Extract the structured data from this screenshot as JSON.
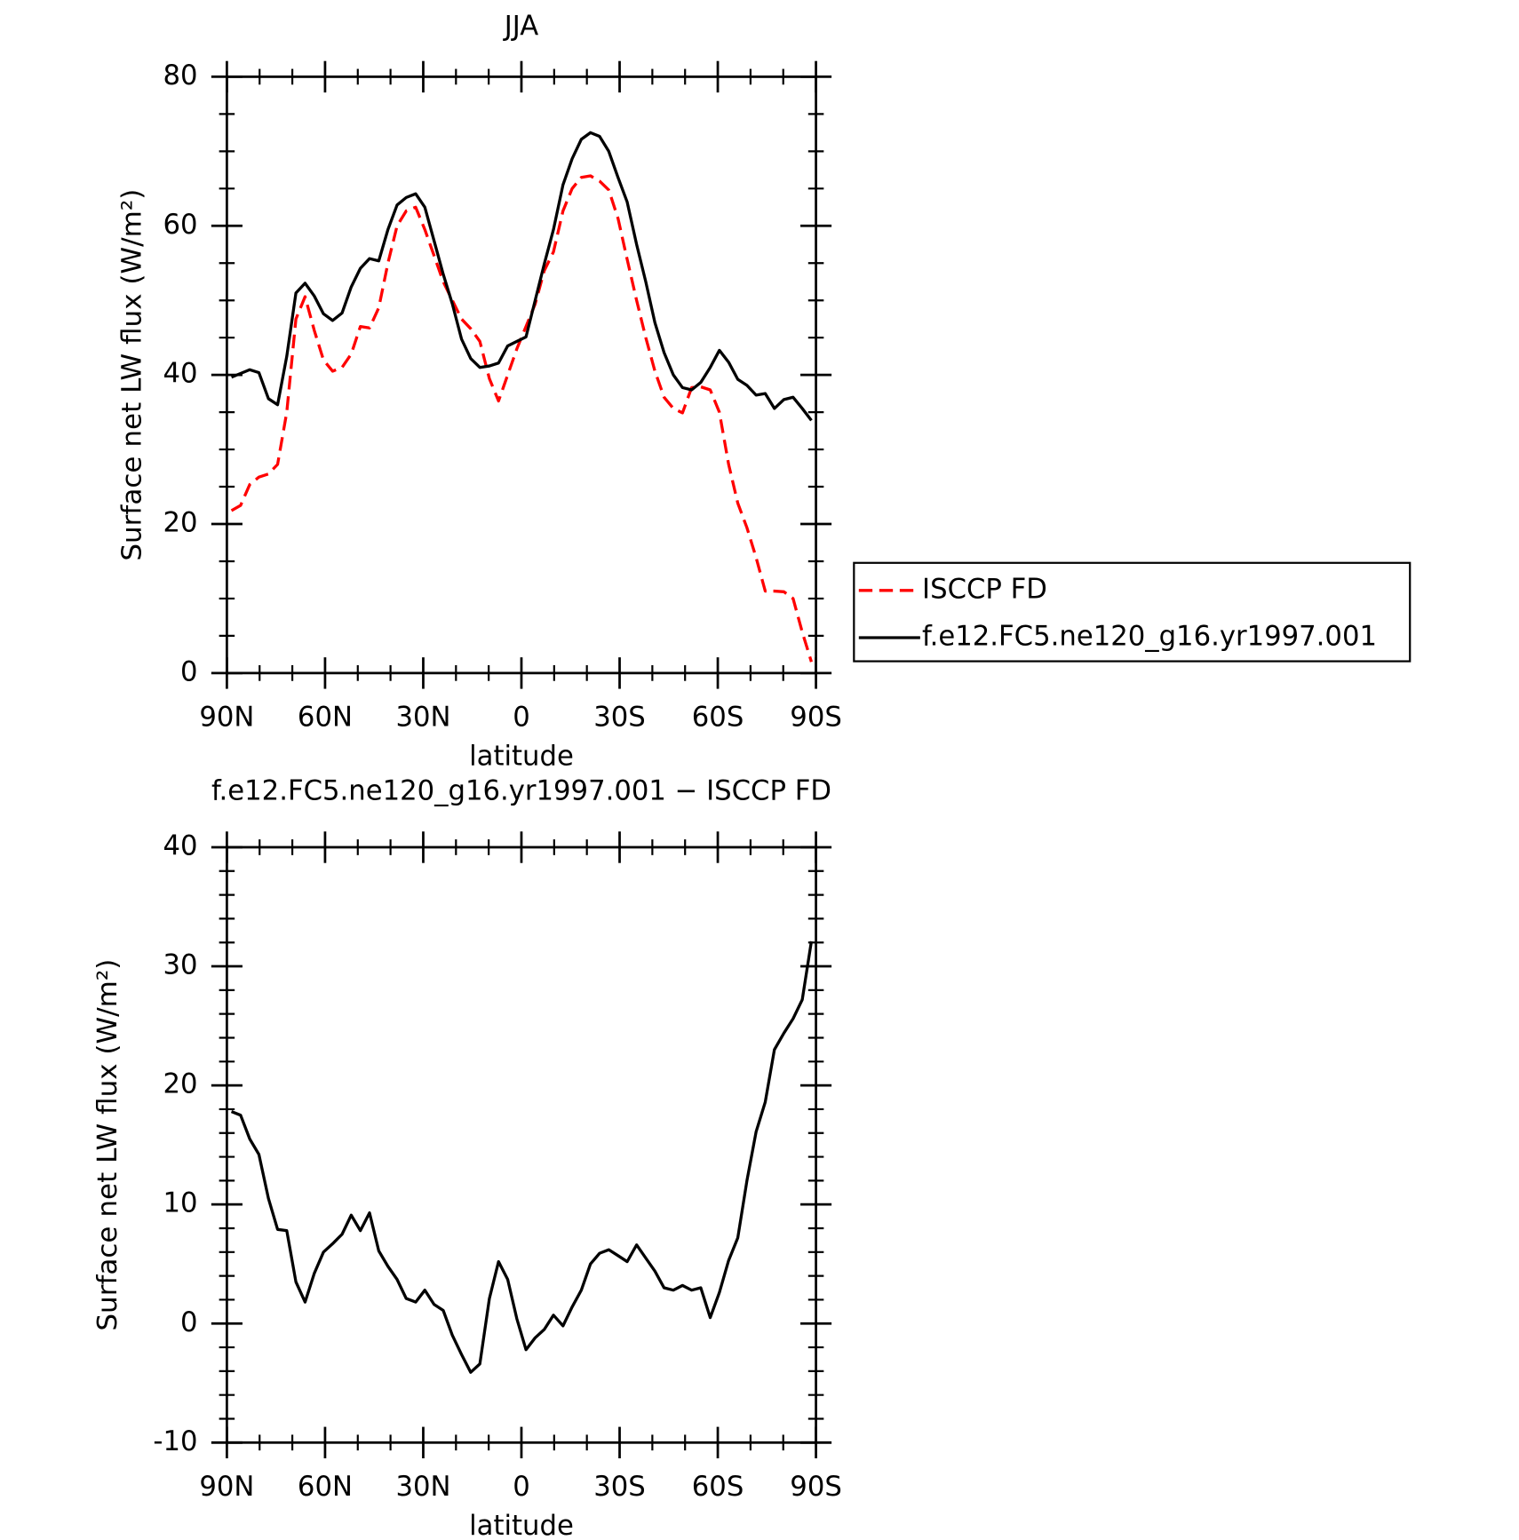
{
  "chart_data": [
    {
      "type": "line",
      "title": "JJA",
      "xlabel": "latitude",
      "ylabel": "Surface net LW flux (W/m²)",
      "xlim": [
        90,
        -90
      ],
      "xticks": [
        {
          "value": 90,
          "label": "90N"
        },
        {
          "value": 60,
          "label": "60N"
        },
        {
          "value": 30,
          "label": "30N"
        },
        0,
        {
          "value": -30,
          "label": "30S"
        },
        {
          "value": -60,
          "label": "60S"
        },
        {
          "value": -90,
          "label": "90S"
        }
      ],
      "xminorticks": [
        80,
        70,
        50,
        40,
        20,
        10,
        -10,
        -20,
        -40,
        -50,
        -70,
        -80
      ],
      "ylim": [
        0,
        80
      ],
      "yticks": [
        0,
        20,
        40,
        60,
        80
      ],
      "yminorticks": [
        5,
        10,
        15,
        25,
        30,
        35,
        45,
        50,
        55,
        65,
        70,
        75
      ],
      "legend_position": "outside right",
      "x": [
        88.6,
        85.8,
        83.0,
        80.2,
        77.3,
        74.5,
        71.7,
        68.9,
        66.1,
        63.3,
        60.5,
        57.7,
        54.8,
        52.0,
        49.2,
        46.4,
        43.6,
        40.8,
        38.0,
        35.2,
        32.3,
        29.5,
        26.7,
        23.9,
        21.1,
        18.3,
        15.5,
        12.7,
        9.8,
        7.0,
        4.2,
        1.4,
        -1.4,
        -4.2,
        -7.0,
        -9.8,
        -12.7,
        -15.5,
        -18.3,
        -21.1,
        -23.9,
        -26.7,
        -29.5,
        -32.3,
        -35.2,
        -38.0,
        -40.8,
        -43.6,
        -46.4,
        -49.2,
        -52.0,
        -54.8,
        -57.7,
        -60.5,
        -63.3,
        -66.1,
        -68.9,
        -71.7,
        -74.5,
        -77.3,
        -80.2,
        -83.0,
        -85.8,
        -88.6
      ],
      "series": [
        {
          "name": "ISCCP FD",
          "color": "#ff0000",
          "line_style": "dashed",
          "values": [
            21.8,
            22.5,
            25.3,
            26.3,
            26.7,
            28.0,
            35.0,
            47.5,
            50.5,
            46.0,
            42.0,
            40.5,
            41.0,
            42.8,
            46.5,
            46.3,
            49.0,
            55.0,
            60.0,
            62.0,
            62.5,
            59.5,
            56.0,
            52.5,
            50.0,
            47.5,
            46.2,
            44.5,
            39.5,
            36.5,
            40.0,
            43.5,
            46.5,
            49.5,
            54.0,
            56.5,
            62.0,
            65.0,
            66.5,
            66.7,
            66.0,
            64.8,
            61.0,
            55.5,
            50.0,
            45.0,
            40.5,
            37.0,
            35.5,
            34.9,
            38.3,
            38.4,
            38.0,
            35.0,
            28.0,
            22.8,
            19.5,
            15.5,
            11.0,
            11.0,
            10.9,
            10.0,
            5.5,
            1.5
          ]
        },
        {
          "name": "f.e12.FC5.ne120_g16.yr1997.001",
          "color": "#000000",
          "line_style": "solid",
          "values": [
            39.7,
            40.2,
            40.7,
            40.3,
            36.8,
            36.0,
            42.5,
            51.0,
            52.3,
            50.6,
            48.2,
            47.3,
            48.3,
            51.8,
            54.3,
            55.6,
            55.3,
            59.5,
            62.8,
            63.8,
            64.3,
            62.5,
            58.0,
            53.5,
            49.5,
            44.8,
            42.2,
            41.0,
            41.2,
            41.6,
            43.9,
            44.5,
            45.1,
            50.0,
            54.9,
            59.5,
            65.5,
            69.0,
            71.6,
            72.5,
            72.0,
            70.0,
            66.5,
            63.2,
            57.5,
            52.5,
            47.0,
            43.0,
            40.0,
            38.3,
            38.0,
            39.0,
            41.0,
            43.3,
            41.7,
            39.4,
            38.6,
            37.3,
            37.5,
            35.5,
            36.7,
            37.0,
            35.5,
            33.9
          ]
        }
      ]
    },
    {
      "type": "line",
      "title": "f.e12.FC5.ne120_g16.yr1997.001 − ISCCP FD",
      "xlabel": "latitude",
      "ylabel": "Surface net LW flux (W/m²)",
      "xlim": [
        90,
        -90
      ],
      "xticks": [
        {
          "value": 90,
          "label": "90N"
        },
        {
          "value": 60,
          "label": "60N"
        },
        {
          "value": 30,
          "label": "30N"
        },
        0,
        {
          "value": -30,
          "label": "30S"
        },
        {
          "value": -60,
          "label": "60S"
        },
        {
          "value": -90,
          "label": "90S"
        }
      ],
      "xminorticks": [
        80,
        70,
        50,
        40,
        20,
        10,
        -10,
        -20,
        -40,
        -50,
        -70,
        -80
      ],
      "ylim": [
        -10,
        40
      ],
      "yticks": [
        -10,
        0,
        10,
        20,
        30,
        40
      ],
      "yminorticks": [
        -8,
        -6,
        -4,
        -2,
        2,
        4,
        6,
        8,
        12,
        14,
        16,
        18,
        22,
        24,
        26,
        28,
        32,
        34,
        36,
        38
      ],
      "x": [
        88.6,
        85.8,
        83.0,
        80.2,
        77.3,
        74.5,
        71.7,
        68.9,
        66.1,
        63.3,
        60.5,
        57.7,
        54.8,
        52.0,
        49.2,
        46.4,
        43.6,
        40.8,
        38.0,
        35.2,
        32.3,
        29.5,
        26.7,
        23.9,
        21.1,
        18.3,
        15.5,
        12.7,
        9.8,
        7.0,
        4.2,
        1.4,
        -1.4,
        -4.2,
        -7.0,
        -9.8,
        -12.7,
        -15.5,
        -18.3,
        -21.1,
        -23.9,
        -26.7,
        -29.5,
        -32.3,
        -35.2,
        -38.0,
        -40.8,
        -43.6,
        -46.4,
        -49.2,
        -52.0,
        -54.8,
        -57.7,
        -60.5,
        -63.3,
        -66.1,
        -68.9,
        -71.7,
        -74.5,
        -77.3,
        -80.2,
        -83.0,
        -85.8,
        -88.6
      ],
      "series": [
        {
          "color": "#000000",
          "line_style": "solid",
          "values": [
            17.8,
            17.5,
            15.5,
            14.2,
            10.5,
            7.9,
            7.8,
            3.5,
            1.8,
            4.2,
            6.0,
            6.7,
            7.5,
            9.1,
            7.8,
            9.3,
            6.1,
            4.8,
            3.7,
            2.1,
            1.8,
            2.8,
            1.6,
            1.1,
            -1.0,
            -2.6,
            -4.1,
            -3.4,
            2.1,
            5.2,
            3.7,
            0.4,
            -2.2,
            -1.2,
            -0.5,
            0.7,
            -0.2,
            1.4,
            2.8,
            5.0,
            5.9,
            6.2,
            5.7,
            5.2,
            6.6,
            5.5,
            4.4,
            3.0,
            2.8,
            3.2,
            2.8,
            3.0,
            0.5,
            2.6,
            5.3,
            7.2,
            12.0,
            16.1,
            18.6,
            23.0,
            24.4,
            25.6,
            27.2,
            32.1
          ]
        }
      ]
    }
  ]
}
